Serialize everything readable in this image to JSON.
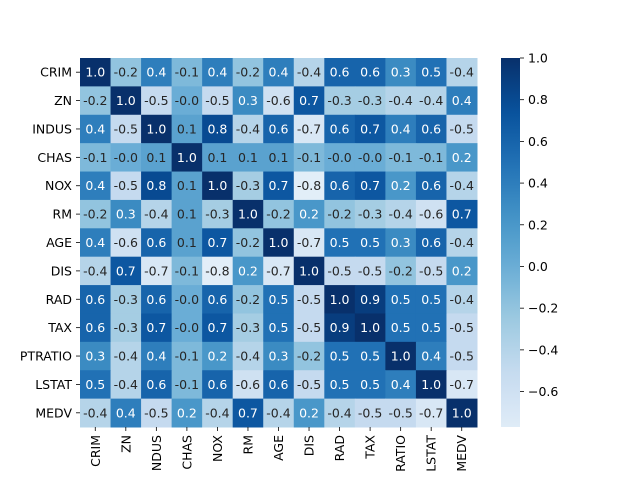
{
  "chart_data": {
    "type": "heatmap",
    "title": "",
    "xlabel": "",
    "ylabel": "",
    "x_labels": [
      "CRIM",
      "ZN",
      "NDUS",
      "CHAS",
      "NOX",
      "RM",
      "AGE",
      "DIS",
      "RAD",
      "TAX",
      "RATIO",
      "LSTAT",
      "MEDV"
    ],
    "y_labels": [
      "CRIM",
      "ZN",
      "INDUS",
      "CHAS",
      "NOX",
      "RM",
      "AGE",
      "DIS",
      "RAD",
      "TAX",
      "PTRATIO",
      "LSTAT",
      "MEDV"
    ],
    "values": [
      [
        1.0,
        -0.2,
        0.4,
        -0.1,
        0.4,
        -0.2,
        0.4,
        -0.4,
        0.6,
        0.6,
        0.3,
        0.5,
        -0.4
      ],
      [
        -0.2,
        1.0,
        -0.5,
        -0.0,
        -0.5,
        0.3,
        -0.6,
        0.7,
        -0.3,
        -0.3,
        -0.4,
        -0.4,
        0.4
      ],
      [
        0.4,
        -0.5,
        1.0,
        0.1,
        0.8,
        -0.4,
        0.6,
        -0.7,
        0.6,
        0.7,
        0.4,
        0.6,
        -0.5
      ],
      [
        -0.1,
        -0.0,
        0.1,
        1.0,
        0.1,
        0.1,
        0.1,
        -0.1,
        -0.0,
        -0.0,
        -0.1,
        -0.1,
        0.2
      ],
      [
        0.4,
        -0.5,
        0.8,
        0.1,
        1.0,
        -0.3,
        0.7,
        -0.8,
        0.6,
        0.7,
        0.2,
        0.6,
        -0.4
      ],
      [
        -0.2,
        0.3,
        -0.4,
        0.1,
        -0.3,
        1.0,
        -0.2,
        0.2,
        -0.2,
        -0.3,
        -0.4,
        -0.6,
        0.7
      ],
      [
        0.4,
        -0.6,
        0.6,
        0.1,
        0.7,
        -0.2,
        1.0,
        -0.7,
        0.5,
        0.5,
        0.3,
        0.6,
        -0.4
      ],
      [
        -0.4,
        0.7,
        -0.7,
        -0.1,
        -0.8,
        0.2,
        -0.7,
        1.0,
        -0.5,
        -0.5,
        -0.2,
        -0.5,
        0.2
      ],
      [
        0.6,
        -0.3,
        0.6,
        -0.0,
        0.6,
        -0.2,
        0.5,
        -0.5,
        1.0,
        0.9,
        0.5,
        0.5,
        -0.4
      ],
      [
        0.6,
        -0.3,
        0.7,
        -0.0,
        0.7,
        -0.3,
        0.5,
        -0.5,
        0.9,
        1.0,
        0.5,
        0.5,
        -0.5
      ],
      [
        0.3,
        -0.4,
        0.4,
        -0.1,
        0.2,
        -0.4,
        0.3,
        -0.2,
        0.5,
        0.5,
        1.0,
        0.4,
        -0.5
      ],
      [
        0.5,
        -0.4,
        0.6,
        -0.1,
        0.6,
        -0.6,
        0.6,
        -0.5,
        0.5,
        0.5,
        0.4,
        1.0,
        -0.7
      ],
      [
        -0.4,
        0.4,
        -0.5,
        0.2,
        -0.4,
        0.7,
        -0.4,
        0.2,
        -0.4,
        -0.5,
        -0.5,
        -0.7,
        1.0
      ]
    ],
    "annotation_format": "0.1f",
    "colormap": "Blues",
    "color_range": [
      -0.77,
      1.0
    ],
    "colorbar": {
      "ticks": [
        -0.6,
        -0.4,
        -0.2,
        0.0,
        0.2,
        0.4,
        0.6,
        0.8,
        1.0
      ],
      "tick_labels": [
        "−0.6",
        "−0.4",
        "−0.2",
        "0.0",
        "0.2",
        "0.4",
        "0.6",
        "0.8",
        "1.0"
      ],
      "placement": "right"
    },
    "grid": false,
    "legend": "none"
  }
}
